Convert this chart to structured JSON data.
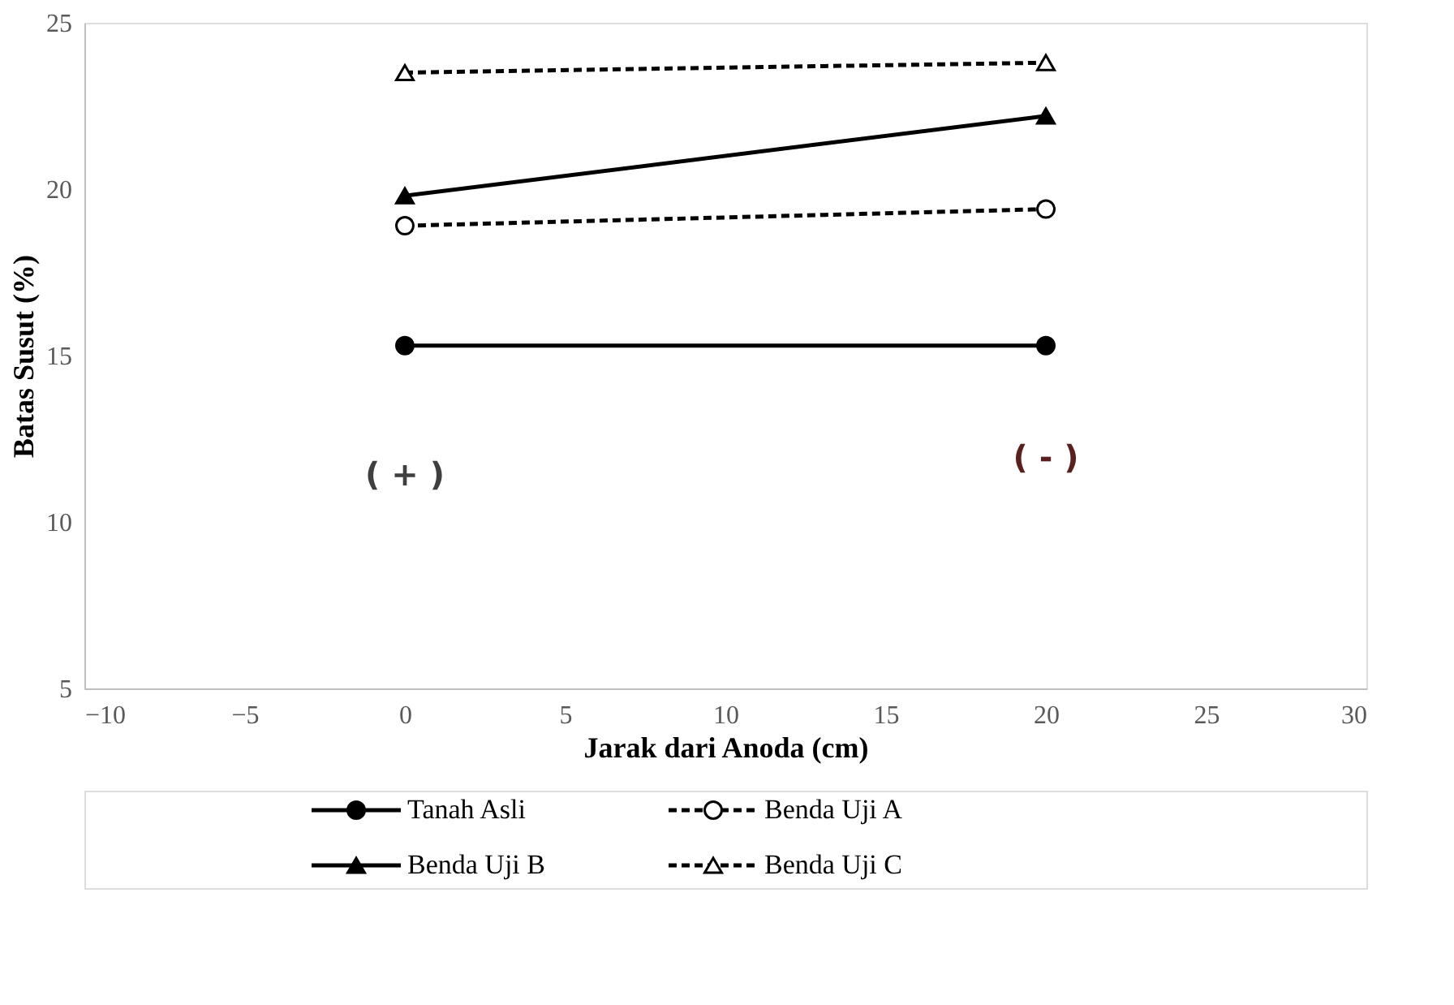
{
  "chart_data": {
    "type": "line",
    "xlabel": "Jarak dari Anoda (cm)",
    "ylabel": "Batas Susut (%)",
    "x": [
      0,
      20
    ],
    "xlim": [
      -10,
      30
    ],
    "xticks": [
      -10,
      -5,
      0,
      5,
      10,
      15,
      20,
      25,
      30
    ],
    "ylim": [
      5,
      25
    ],
    "yticks": [
      5,
      10,
      15,
      20,
      25
    ],
    "grid": false,
    "legend": "bottom",
    "series": [
      {
        "name": "Tanah Asli",
        "color": "#000000",
        "values": [
          15.3,
          15.3
        ],
        "marker": "circle",
        "line_style": "solid"
      },
      {
        "name": "Benda Uji A",
        "color": "#000000",
        "values": [
          18.9,
          19.4
        ],
        "marker": "circle",
        "line_style": "dashed"
      },
      {
        "name": "Benda Uji B",
        "color": "#000000",
        "values": [
          19.8,
          22.2
        ],
        "marker": "triangle",
        "line_style": "solid"
      },
      {
        "name": "Benda Uji C",
        "color": "#000000",
        "values": [
          23.5,
          23.8
        ],
        "marker": "triangle",
        "line_style": "dashed"
      }
    ],
    "annotations": [
      "( + )",
      "( - )"
    ]
  }
}
